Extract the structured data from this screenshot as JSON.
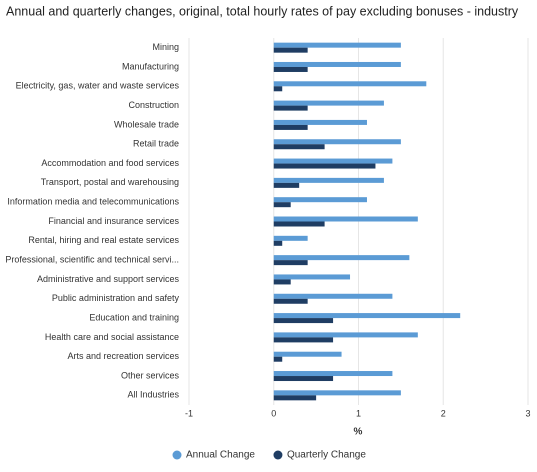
{
  "chart_data": {
    "type": "hbar",
    "title": "Annual and quarterly changes, original, total hourly rates of pay excluding bonuses - industry",
    "x_label": "%",
    "categories": [
      "Mining",
      "Manufacturing",
      "Electricity, gas, water and waste services",
      "Construction",
      "Wholesale trade",
      "Retail trade",
      "Accommodation and food services",
      "Transport, postal and warehousing",
      "Information media and telecommunications",
      "Financial and insurance services",
      "Rental, hiring and real estate services",
      "Professional, scientific and technical servi...",
      "Administrative and support services",
      "Public administration and safety",
      "Education and training",
      "Health care and social assistance",
      "Arts and recreation services",
      "Other services",
      "All Industries"
    ],
    "series": [
      {
        "name": "Annual Change",
        "color": "#5b9bd5",
        "values": [
          1.5,
          1.5,
          1.8,
          1.3,
          1.1,
          1.5,
          1.4,
          1.3,
          1.1,
          1.7,
          0.4,
          1.6,
          0.9,
          1.4,
          2.2,
          1.7,
          0.8,
          1.4,
          1.5
        ]
      },
      {
        "name": "Quarterly Change",
        "color": "#1f3d63",
        "values": [
          0.4,
          0.4,
          0.1,
          0.4,
          0.4,
          0.6,
          1.2,
          0.3,
          0.2,
          0.6,
          0.1,
          0.4,
          0.2,
          0.4,
          0.7,
          0.7,
          0.1,
          0.7,
          0.5
        ]
      }
    ],
    "xlim": [
      -1,
      3
    ],
    "xticks": [
      -1,
      0,
      1,
      2,
      3
    ],
    "grid": true
  }
}
